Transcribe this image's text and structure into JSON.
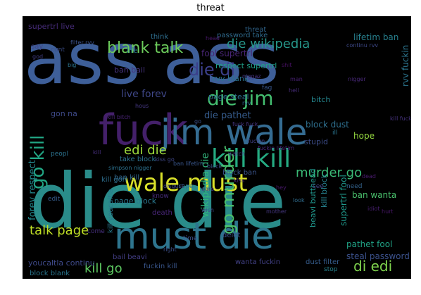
{
  "title": "threat",
  "background": "#000000",
  "words": [
    {
      "text": "ass ass",
      "color": "#3e5f99"
    },
    {
      "text": "die die",
      "color": "#2a8c8a"
    },
    {
      "text": "fuck",
      "color": "#44206a"
    },
    {
      "text": "jim wale",
      "color": "#356c92"
    },
    {
      "text": "must die",
      "color": "#2e758e"
    },
    {
      "text": "wale must",
      "color": "#d9e02a"
    },
    {
      "text": "kill kill",
      "color": "#25ab82"
    },
    {
      "text": "die jim",
      "color": "#44bf70"
    },
    {
      "text": "die di",
      "color": "#3b3f8b"
    },
    {
      "text": "blank talk",
      "color": "#6ccb5b"
    },
    {
      "text": "die wikipedia",
      "color": "#26968a"
    },
    {
      "text": "go kill",
      "color": "#22a785"
    },
    {
      "text": "go murder",
      "color": "#4cc26c"
    },
    {
      "text": "edi die",
      "color": "#9cd93b"
    },
    {
      "text": "murder go",
      "color": "#3aba76"
    },
    {
      "text": "talk page",
      "color": "#c0df25"
    },
    {
      "text": "kill go",
      "color": "#5ec962"
    },
    {
      "text": "di edi",
      "color": "#7fd34e"
    },
    {
      "text": "wikipedia die",
      "color": "#31b57b"
    },
    {
      "text": "live forev",
      "color": "#3f4788"
    },
    {
      "text": "forev respect",
      "color": "#23898e"
    },
    {
      "text": "supertrl live",
      "color": "#472c7a"
    },
    {
      "text": "rvv fuckin",
      "color": "#2b758e"
    },
    {
      "text": "fool supertrl",
      "color": "#482575"
    },
    {
      "text": "respect supertrl",
      "color": "#1fa088"
    },
    {
      "text": "rvv blank",
      "color": "#2c728e"
    },
    {
      "text": "lifetim ban",
      "color": "#27808e"
    },
    {
      "text": "page steal",
      "color": "#2d718e"
    },
    {
      "text": "die pathet",
      "color": "#365c8d"
    },
    {
      "text": "block dust",
      "color": "#2e6f8e"
    },
    {
      "text": "pathet fool",
      "color": "#20a386"
    },
    {
      "text": "steal password",
      "color": "#3b518b"
    },
    {
      "text": "supertrl fool",
      "color": "#1f988b"
    },
    {
      "text": "ban wanta",
      "color": "#4ac16d"
    },
    {
      "text": "block ban",
      "color": "#3a538b"
    },
    {
      "text": "kill block",
      "color": "#26818e"
    },
    {
      "text": "page block",
      "color": "#2a788e"
    },
    {
      "text": "take block",
      "color": "#2c718e"
    },
    {
      "text": "ban kill",
      "color": "#31688e"
    },
    {
      "text": "gon na",
      "color": "#3e4a89"
    },
    {
      "text": "hope",
      "color": "#95d840"
    },
    {
      "text": "bitch",
      "color": "#24868e"
    },
    {
      "text": "stupid",
      "color": "#3d4d8a"
    },
    {
      "text": "ban bail",
      "color": "#46337e"
    },
    {
      "text": "beavi butthead",
      "color": "#1f958b"
    },
    {
      "text": "kill youcaltla",
      "color": "#29798e"
    },
    {
      "text": "youcaltla continu",
      "color": "#3e4989"
    },
    {
      "text": "bail beavi",
      "color": "#433e85"
    },
    {
      "text": "fuckin kill",
      "color": "#39568c"
    },
    {
      "text": "dust filter",
      "color": "#365d8d"
    },
    {
      "text": "block blank",
      "color": "#2a768e"
    },
    {
      "text": "wanta fuckin",
      "color": "#424186"
    },
    {
      "text": "kill gon",
      "color": "#2e6e8e"
    },
    {
      "text": "password take",
      "color": "#2f6b8e"
    },
    {
      "text": "death",
      "color": "#482677"
    },
    {
      "text": "delet",
      "color": "#3b528b"
    },
    {
      "text": "edit",
      "color": "#365d8d"
    },
    {
      "text": "know",
      "color": "#472d7b"
    },
    {
      "text": "stop",
      "color": "#26828e"
    },
    {
      "text": "peopl",
      "color": "#2c728e"
    },
    {
      "text": "time",
      "color": "#3d4e8a"
    },
    {
      "text": "rape",
      "color": "#2d708e"
    },
    {
      "text": "say",
      "color": "#404588"
    },
    {
      "text": "life",
      "color": "#29798e"
    },
    {
      "text": "think",
      "color": "#2e6e8e"
    },
    {
      "text": "come",
      "color": "#46307e"
    },
    {
      "text": "need",
      "color": "#33638d"
    },
    {
      "text": "fag",
      "color": "#38588c"
    },
    {
      "text": "cunt",
      "color": "#3c4f8a"
    },
    {
      "text": "threat",
      "color": "#31668e"
    },
    {
      "text": "ill",
      "color": "#2b748e"
    },
    {
      "text": "see",
      "color": "#414487"
    },
    {
      "text": "look",
      "color": "#2f6c8e"
    },
    {
      "text": "right",
      "color": "#3c508b"
    },
    {
      "text": "big",
      "color": "#2c738e"
    },
    {
      "text": "head",
      "color": "#48186a"
    },
    {
      "text": "filter rvv",
      "color": "#3b528b"
    },
    {
      "text": "rvv",
      "color": "#31688e"
    },
    {
      "text": "continu rvv",
      "color": "#3e4989"
    },
    {
      "text": "ban lifetim",
      "color": "#39568c"
    },
    {
      "text": "kiss",
      "color": "#482878"
    },
    {
      "text": "hous",
      "color": "#453882"
    },
    {
      "text": "fuckin lifetim",
      "color": "#482576"
    },
    {
      "text": "go",
      "color": "#3b528b"
    },
    {
      "text": "fuck fuck",
      "color": "#463480"
    },
    {
      "text": "simpson nigger",
      "color": "#2c718e"
    },
    {
      "text": "kiss go",
      "color": "#3f4788"
    },
    {
      "text": "niggaz",
      "color": "#46327e"
    },
    {
      "text": "kill",
      "color": "#472f7d"
    },
    {
      "text": "dare",
      "color": "#433d84"
    },
    {
      "text": "wish",
      "color": "#3d4e8a"
    },
    {
      "text": "kill bitch",
      "color": "#482374"
    },
    {
      "text": "block",
      "color": "#3a548c"
    },
    {
      "text": "disgust",
      "color": "#404688"
    },
    {
      "text": "hey",
      "color": "#48186a"
    },
    {
      "text": "fuckin",
      "color": "#414287"
    },
    {
      "text": "god",
      "color": "#433e85"
    },
    {
      "text": "shit",
      "color": "#471063"
    },
    {
      "text": "dead",
      "color": "#481b6d"
    },
    {
      "text": "idiot",
      "color": "#481f70"
    },
    {
      "text": "man",
      "color": "#482173"
    },
    {
      "text": "kill fuck",
      "color": "#46327e"
    },
    {
      "text": "mother",
      "color": "#453781"
    },
    {
      "text": "hell",
      "color": "#472c7a"
    },
    {
      "text": "nigger",
      "color": "#482878"
    },
    {
      "text": "hurt",
      "color": "#481769"
    },
    {
      "text": "watch",
      "color": "#44397f"
    }
  ]
}
